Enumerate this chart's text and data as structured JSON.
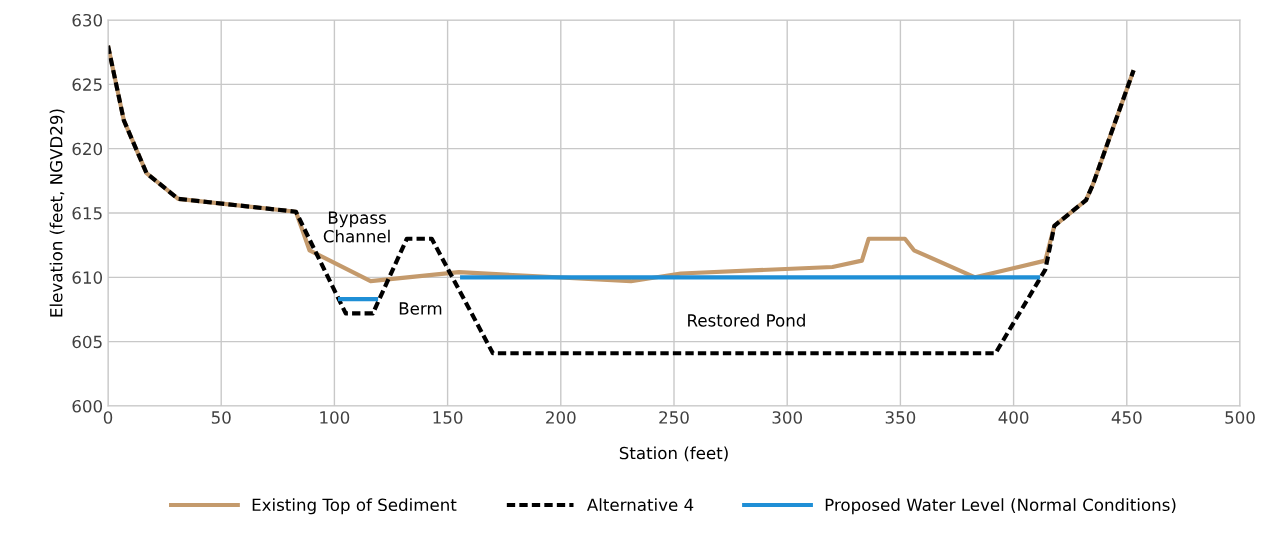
{
  "chart_data": {
    "type": "line",
    "xlabel": "Station (feet)",
    "ylabel": "Elevation (feet, NGVD29)",
    "xlim": [
      0,
      500
    ],
    "xticks": [
      0,
      50,
      100,
      150,
      200,
      250,
      300,
      350,
      400,
      450,
      500
    ],
    "ylim": [
      600,
      630
    ],
    "yticks": [
      600,
      605,
      610,
      615,
      620,
      625,
      630
    ],
    "grid": true,
    "legend": "bottom",
    "line_style": "solid",
    "series": [
      {
        "name": "Existing Top of Sediment",
        "color": "#c49a6c",
        "x": [
          0,
          7,
          17,
          31,
          83,
          89,
          116,
          155,
          231,
          253,
          320,
          333,
          336,
          352,
          356,
          383,
          414,
          418,
          432,
          435,
          453
        ],
        "values": [
          628,
          622.2,
          618.1,
          616.1,
          615.1,
          612.1,
          609.7,
          610.4,
          609.7,
          610.3,
          610.8,
          611.3,
          613,
          613,
          612.1,
          610,
          611.3,
          614,
          616,
          617.2,
          626.1
        ]
      },
      {
        "name": "Alternative 4",
        "color": "#000000",
        "line_style": "dashed",
        "x": [
          0,
          7,
          17,
          31,
          83,
          105,
          117,
          132,
          143,
          170,
          392,
          414,
          418,
          432,
          435,
          453
        ],
        "values": [
          628,
          622.2,
          618.1,
          616.1,
          615.1,
          607.2,
          607.2,
          613,
          613,
          604.1,
          604.1,
          610.6,
          614,
          616,
          617.2,
          626.1
        ]
      },
      {
        "name": "Proposed Water Level (Normal Conditions)",
        "color": "#1f8fd6",
        "x": [
          101.6,
          119.3,
          137,
          155.5,
          411.7
        ],
        "values": [
          608.3,
          608.3,
          null,
          610,
          610
        ]
      }
    ],
    "annotations": [
      "Bypass\nChannel",
      "Berm",
      "Restored Pond"
    ]
  }
}
